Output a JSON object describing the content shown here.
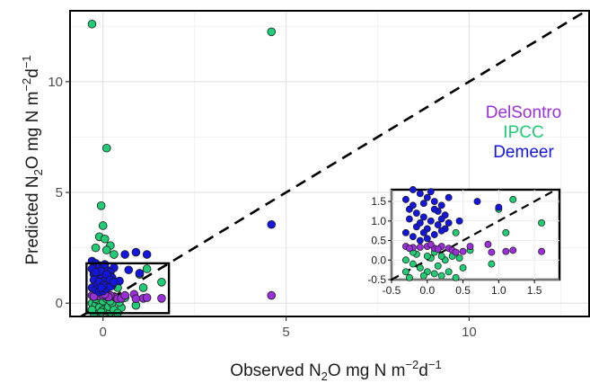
{
  "chart_data": {
    "type": "scatter",
    "xlabel": {
      "pre": "Observed N",
      "sub": "2",
      "mid": "O mg N m",
      "sup1": "−2",
      "d": "d",
      "sup2": "−1"
    },
    "ylabel": {
      "pre": "Predicted N",
      "sub": "2",
      "mid": "O mg N m",
      "sup1": "−2",
      "d": "d",
      "sup2": "−1"
    },
    "xlim": [
      -0.9,
      13.3
    ],
    "ylim": [
      -0.6,
      13.2
    ],
    "xticks": [
      0,
      5,
      10
    ],
    "yticks": [
      0,
      5,
      10
    ],
    "grid": true,
    "reference_line": "1:1 dashed",
    "legend_position": "right",
    "colors": {
      "DelSontro": "#9b30d9",
      "IPCC": "#22cc77",
      "Demeer": "#1515e0"
    },
    "series": [
      {
        "name": "DelSontro",
        "color": "#9b30d9",
        "points": [
          [
            4.6,
            0.35
          ],
          [
            0.3,
            0.3
          ],
          [
            0.35,
            0.25
          ],
          [
            0.4,
            0.2
          ],
          [
            0.5,
            0.22
          ],
          [
            0.6,
            0.35
          ],
          [
            0.85,
            0.4
          ],
          [
            0.9,
            0.2
          ],
          [
            1.1,
            0.22
          ],
          [
            1.2,
            0.25
          ],
          [
            1.6,
            0.22
          ],
          [
            -0.3,
            0.35
          ],
          [
            -0.2,
            0.32
          ],
          [
            -0.1,
            0.33
          ],
          [
            0.0,
            0.35
          ],
          [
            0.1,
            0.3
          ],
          [
            0.2,
            0.35
          ],
          [
            0.15,
            0.28
          ],
          [
            -0.25,
            0.3
          ],
          [
            0.05,
            0.4
          ]
        ]
      },
      {
        "name": "IPCC",
        "color": "#22cc77",
        "points": [
          [
            -0.3,
            12.6
          ],
          [
            0.1,
            7.0
          ],
          [
            -0.05,
            4.4
          ],
          [
            4.6,
            12.25
          ],
          [
            0.0,
            3.5
          ],
          [
            -0.1,
            3.0
          ],
          [
            0.05,
            2.9
          ],
          [
            0.2,
            2.6
          ],
          [
            -0.2,
            2.5
          ],
          [
            0.1,
            2.4
          ],
          [
            0.3,
            2.2
          ],
          [
            1.0,
            1.3
          ],
          [
            1.2,
            1.55
          ],
          [
            1.6,
            0.95
          ],
          [
            0.9,
            -0.1
          ],
          [
            0.6,
            0.25
          ],
          [
            0.4,
            0.7
          ],
          [
            0.5,
            -0.2
          ],
          [
            0.35,
            0.1
          ],
          [
            -0.3,
            0.0
          ],
          [
            -0.2,
            -0.1
          ],
          [
            -0.1,
            -0.2
          ],
          [
            0.0,
            -0.3
          ],
          [
            0.1,
            -0.35
          ],
          [
            0.2,
            -0.4
          ],
          [
            -0.25,
            -0.45
          ],
          [
            -0.15,
            0.15
          ],
          [
            0.05,
            0.05
          ],
          [
            0.15,
            -0.15
          ],
          [
            0.25,
            0.0
          ],
          [
            -0.05,
            -0.4
          ],
          [
            0.3,
            -0.3
          ],
          [
            -0.3,
            -0.3
          ],
          [
            0.0,
            0.1
          ],
          [
            -0.2,
            0.2
          ],
          [
            0.1,
            0.2
          ],
          [
            0.2,
            0.1
          ],
          [
            0.4,
            -0.45
          ],
          [
            0.45,
            0.05
          ],
          [
            1.1,
            0.7
          ]
        ]
      },
      {
        "name": "Demeer",
        "color": "#1515e0",
        "points": [
          [
            4.6,
            3.55
          ],
          [
            0.6,
            2.2
          ],
          [
            0.9,
            2.3
          ],
          [
            1.2,
            2.2
          ],
          [
            0.7,
            1.5
          ],
          [
            1.0,
            1.35
          ],
          [
            0.45,
            1.0
          ],
          [
            0.3,
            1.6
          ],
          [
            -0.3,
            1.9
          ],
          [
            -0.2,
            1.8
          ],
          [
            -0.1,
            1.7
          ],
          [
            0.0,
            1.6
          ],
          [
            0.1,
            1.5
          ],
          [
            0.2,
            1.4
          ],
          [
            -0.25,
            1.3
          ],
          [
            -0.15,
            1.2
          ],
          [
            -0.05,
            1.1
          ],
          [
            0.05,
            1.0
          ],
          [
            0.15,
            0.9
          ],
          [
            0.25,
            0.8
          ],
          [
            -0.3,
            0.7
          ],
          [
            -0.2,
            0.6
          ],
          [
            -0.1,
            0.5
          ],
          [
            0.0,
            0.55
          ],
          [
            0.1,
            0.65
          ],
          [
            0.2,
            0.75
          ],
          [
            -0.25,
            1.05
          ],
          [
            -0.05,
            1.45
          ],
          [
            0.15,
            1.25
          ],
          [
            -0.15,
            0.85
          ],
          [
            0.05,
            1.75
          ],
          [
            -0.3,
            1.55
          ],
          [
            0.25,
            1.15
          ],
          [
            -0.1,
            0.95
          ],
          [
            0.1,
            1.3
          ],
          [
            -0.2,
            1.4
          ],
          [
            0.0,
            0.8
          ],
          [
            0.2,
            1.05
          ],
          [
            -0.05,
            0.7
          ],
          [
            0.3,
            0.95
          ]
        ]
      }
    ],
    "inset": {
      "xlim": [
        -0.5,
        1.85
      ],
      "ylim": [
        -0.5,
        1.8
      ],
      "xticks": [
        "-0.5",
        "0.0",
        "0.5",
        "1.0",
        "1.5"
      ],
      "xtick_values": [
        -0.5,
        0.0,
        0.5,
        1.0,
        1.5
      ],
      "yticks": [
        "-0.5",
        "0.0",
        "0.5",
        "1.0",
        "1.5"
      ],
      "ytick_values": [
        -0.5,
        0.0,
        0.5,
        1.0,
        1.5
      ]
    },
    "zoom_box": {
      "x": [
        -0.45,
        1.8
      ],
      "y": [
        -0.45,
        1.8
      ]
    }
  }
}
